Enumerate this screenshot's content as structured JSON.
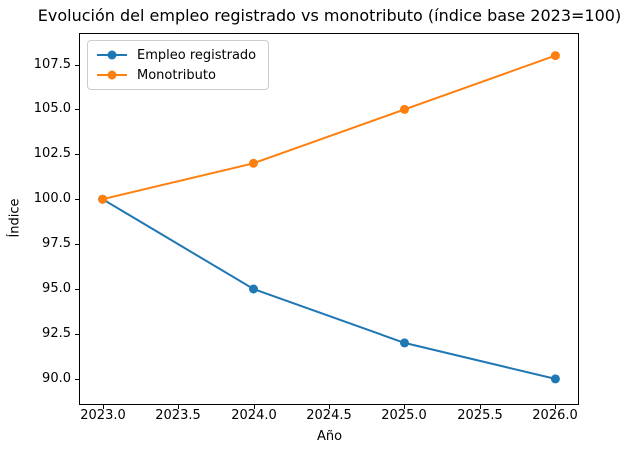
{
  "chart_data": {
    "type": "line",
    "title": "Evolución del empleo registrado vs monotributo (índice base 2023=100)",
    "xlabel": "Año",
    "ylabel": "Índice",
    "x": [
      2023,
      2024,
      2025,
      2026
    ],
    "series": [
      {
        "name": "Empleo registrado",
        "color": "#1f77b4",
        "values": [
          100,
          95,
          92,
          90
        ]
      },
      {
        "name": "Monotributo",
        "color": "#ff7f0e",
        "values": [
          100,
          102,
          105,
          108
        ]
      }
    ],
    "xlim": [
      2022.85,
      2026.15
    ],
    "ylim": [
      88.6,
      109.2
    ],
    "x_ticks": {
      "values": [
        2023.0,
        2023.5,
        2024.0,
        2024.5,
        2025.0,
        2025.5,
        2026.0
      ],
      "labels": [
        "2023.0",
        "2023.5",
        "2024.0",
        "2024.5",
        "2025.0",
        "2025.5",
        "2026.0"
      ]
    },
    "y_ticks": {
      "values": [
        90.0,
        92.5,
        95.0,
        97.5,
        100.0,
        102.5,
        105.0,
        107.5
      ],
      "labels": [
        "90.0",
        "92.5",
        "95.0",
        "97.5",
        "100.0",
        "102.5",
        "105.0",
        "107.5"
      ]
    },
    "legend": {
      "position": "upper-left",
      "entries": [
        "Empleo registrado",
        "Monotributo"
      ]
    },
    "grid": false,
    "marker": "circle",
    "marker_radius": 4.5,
    "line_width": 2,
    "background_color": "#ffffff",
    "spine_color": "#000000",
    "text_color": "#000000"
  }
}
